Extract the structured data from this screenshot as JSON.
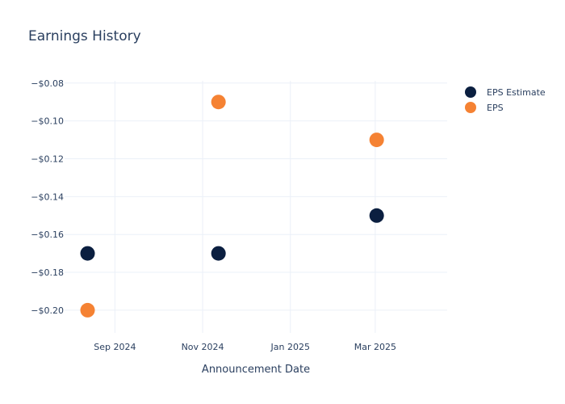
{
  "chart_data": {
    "type": "scatter",
    "title": "Earnings History",
    "xlabel": "Announcement Date",
    "ylabel": "",
    "x_ticks": [
      {
        "date": "2024-09-01",
        "label": "Sep 2024"
      },
      {
        "date": "2024-11-01",
        "label": "Nov 2024"
      },
      {
        "date": "2025-01-01",
        "label": "Jan 2025"
      },
      {
        "date": "2025-03-01",
        "label": "Mar 2025"
      }
    ],
    "y_ticks": [
      {
        "value": -0.08,
        "label": "−$0.08"
      },
      {
        "value": -0.1,
        "label": "−$0.10"
      },
      {
        "value": -0.12,
        "label": "−$0.12"
      },
      {
        "value": -0.14,
        "label": "−$0.14"
      },
      {
        "value": -0.16,
        "label": "−$0.16"
      },
      {
        "value": -0.18,
        "label": "−$0.18"
      },
      {
        "value": -0.2,
        "label": "−$0.20"
      }
    ],
    "xlim": [
      "2024-07-28",
      "2025-04-20"
    ],
    "ylim": [
      -0.212,
      -0.0788
    ],
    "grid": true,
    "legend_position": "top-right",
    "series": [
      {
        "name": "EPS Estimate",
        "color": "#0b1f40",
        "points": [
          {
            "x": "2024-08-13",
            "y": -0.17
          },
          {
            "x": "2024-11-12",
            "y": -0.17
          },
          {
            "x": "2025-03-02",
            "y": -0.15
          }
        ]
      },
      {
        "name": "EPS",
        "color": "#f58233",
        "points": [
          {
            "x": "2024-08-13",
            "y": -0.2
          },
          {
            "x": "2024-11-12",
            "y": -0.09
          },
          {
            "x": "2025-03-02",
            "y": -0.11
          }
        ]
      }
    ]
  }
}
